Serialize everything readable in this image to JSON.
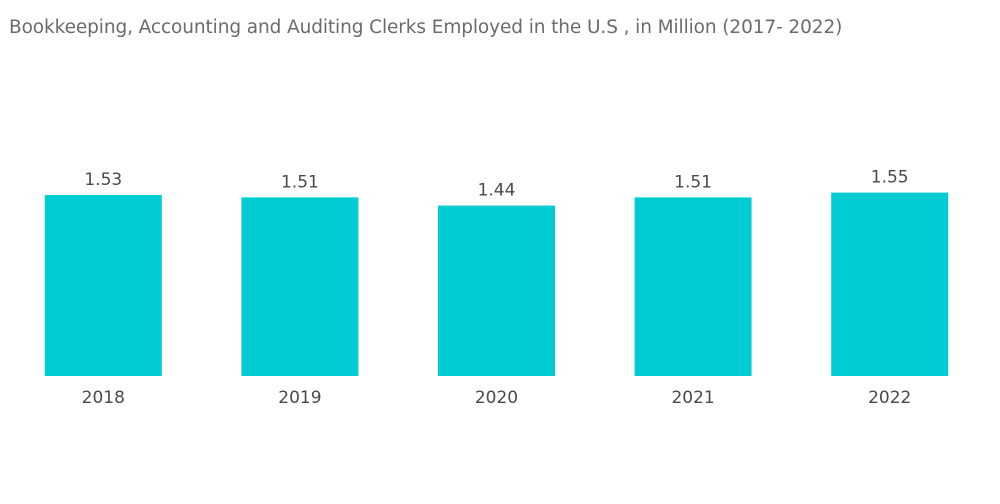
{
  "title": "Bookkeeping, Accounting and Auditing Clerks Employed in the U.S , in Million  (2017- 2022)",
  "colors": {
    "bar": "#00cdd3",
    "text": "#4a4a4a",
    "title": "#6b6b6b"
  },
  "chart_data": {
    "type": "bar",
    "title": "Bookkeeping, Accounting and Auditing Clerks Employed in the U.S , in Million  (2017- 2022)",
    "categories": [
      "2018",
      "2019",
      "2020",
      "2021",
      "2022"
    ],
    "values": [
      1.53,
      1.51,
      1.44,
      1.51,
      1.55
    ],
    "xlabel": "",
    "ylabel": "",
    "data_labels": true,
    "grid": false,
    "legend": "none"
  }
}
